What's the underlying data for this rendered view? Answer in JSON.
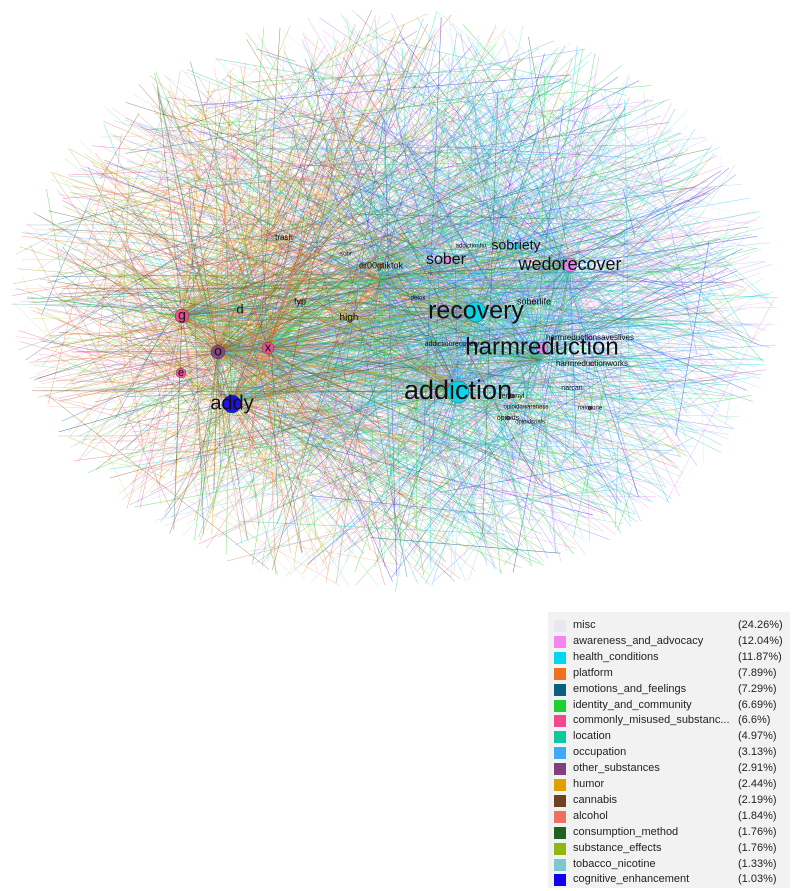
{
  "nodes": [
    {
      "label": "addiction",
      "color": "#00d8f0"
    },
    {
      "label": "recovery",
      "color": "#00d8f0"
    },
    {
      "label": "harmreduction",
      "color": "#f07ef0"
    },
    {
      "label": "wedorecover",
      "color": "#f07ef0"
    },
    {
      "label": "sober",
      "color": "#f07ef0"
    },
    {
      "label": "sobriety",
      "color": "#00d8f0"
    },
    {
      "label": "addy",
      "color": "#1000f0"
    },
    {
      "label": "g",
      "color": "#f04890"
    },
    {
      "label": "d",
      "color": "#f04890"
    },
    {
      "label": "o",
      "color": "#804080"
    },
    {
      "label": "x",
      "color": "#f04890"
    },
    {
      "label": "e",
      "color": "#f04890"
    },
    {
      "label": "high",
      "color": "#90b810"
    },
    {
      "label": "fyp",
      "color": "#f07020"
    },
    {
      "label": "dr00gtiktok",
      "color": "#f07020"
    },
    {
      "label": "soberlife",
      "color": "#f07ef0"
    },
    {
      "label": "harmreductionsaveslives",
      "color": "#f07ef0"
    },
    {
      "label": "harmreductionworks",
      "color": "#f07ef0"
    },
    {
      "label": "trash",
      "color": "#e8e0f0"
    },
    {
      "label": "detox",
      "color": "#00d8f0"
    },
    {
      "label": "addictionrecovery",
      "color": "#00d8f0"
    },
    {
      "label": "naloxone",
      "color": "#804080"
    },
    {
      "label": "opioids",
      "color": "#804080"
    },
    {
      "label": "opioidcrisis",
      "color": "#804080"
    },
    {
      "label": "opioidawareness",
      "color": "#f07ef0"
    },
    {
      "label": "narcan",
      "color": "#804080"
    },
    {
      "label": "addictionhu",
      "color": "#00d8f0"
    },
    {
      "label": "sobr",
      "color": "#e8e0f0"
    },
    {
      "label": "fentanyl",
      "color": "#804080"
    }
  ],
  "legend": {
    "items": [
      {
        "label": "misc",
        "share": "(24.26%)",
        "color": "#ece6f4"
      },
      {
        "label": "awareness_and_advocacy",
        "share": "(12.04%)",
        "color": "#f784f0"
      },
      {
        "label": "health_conditions",
        "share": "(11.87%)",
        "color": "#00d8f0"
      },
      {
        "label": "platform",
        "share": "(7.89%)",
        "color": "#f07020"
      },
      {
        "label": "emotions_and_feelings",
        "share": "(7.29%)",
        "color": "#0a6080"
      },
      {
        "label": "identity_and_community",
        "share": "(6.69%)",
        "color": "#20d030"
      },
      {
        "label": "commonly_misused_substanc...",
        "share": "(6.6%)",
        "color": "#f04890"
      },
      {
        "label": "location",
        "share": "(4.97%)",
        "color": "#10c8a0"
      },
      {
        "label": "occupation",
        "share": "(3.13%)",
        "color": "#40a8f8"
      },
      {
        "label": "other_substances",
        "share": "(2.91%)",
        "color": "#804080"
      },
      {
        "label": "humor",
        "share": "(2.44%)",
        "color": "#e0a000"
      },
      {
        "label": "cannabis",
        "share": "(2.19%)",
        "color": "#704020"
      },
      {
        "label": "alcohol",
        "share": "(1.84%)",
        "color": "#f07060"
      },
      {
        "label": "consumption_method",
        "share": "(1.76%)",
        "color": "#206020"
      },
      {
        "label": "substance_effects",
        "share": "(1.76%)",
        "color": "#90b810"
      },
      {
        "label": "tobacco_nicotine",
        "share": "(1.33%)",
        "color": "#80c8d0"
      },
      {
        "label": "cognitive_enhancement",
        "share": "(1.03%)",
        "color": "#1000f0"
      }
    ]
  }
}
